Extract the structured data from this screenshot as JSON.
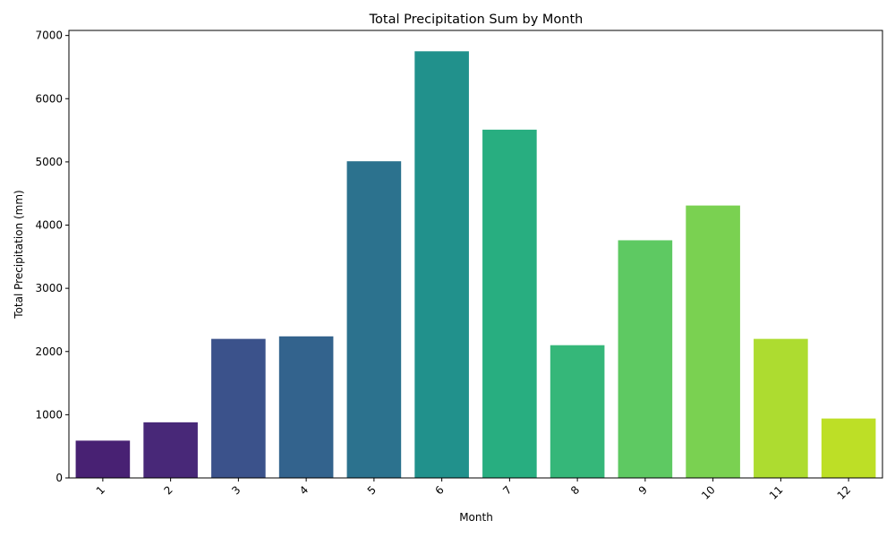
{
  "chart_data": {
    "type": "bar",
    "title": "Total Precipitation Sum by Month",
    "xlabel": "Month",
    "ylabel": "Total Precipitation (mm)",
    "categories": [
      "1",
      "2",
      "3",
      "4",
      "5",
      "6",
      "7",
      "8",
      "9",
      "10",
      "11",
      "12"
    ],
    "values": [
      590,
      880,
      2200,
      2240,
      5010,
      6750,
      5510,
      2100,
      3760,
      4310,
      2200,
      940
    ],
    "ylim": [
      0,
      7080
    ],
    "yticks": [
      "0",
      "1000",
      "2000",
      "3000",
      "4000",
      "5000",
      "6000",
      "7000"
    ],
    "x_tick_rotation": "45 degrees",
    "grid": false,
    "legend": "none",
    "colors": [
      "#482173",
      "#482878",
      "#3b528b",
      "#33638d",
      "#2c728e",
      "#21918c",
      "#28ae80",
      "#35b779",
      "#5ec962",
      "#7ad151",
      "#addc30",
      "#bddf26"
    ]
  }
}
